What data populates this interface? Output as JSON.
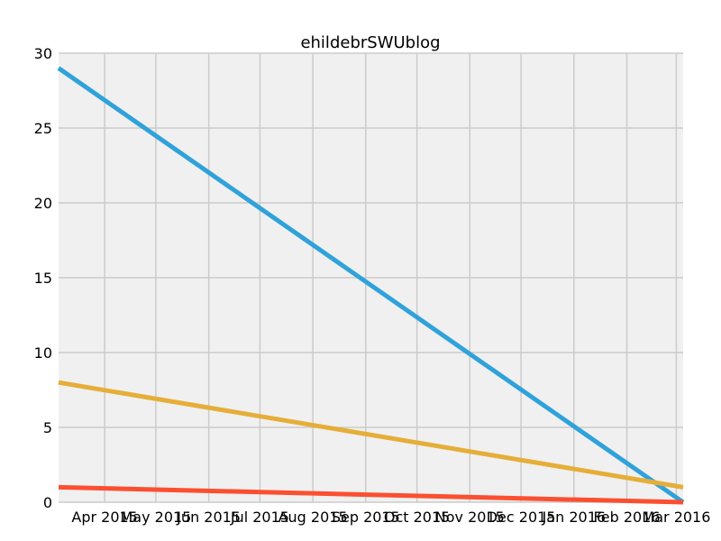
{
  "chart_data": {
    "type": "line",
    "title": "ehildebrSWUblog",
    "xlabel": "",
    "ylabel": "",
    "x_axis": {
      "type": "date",
      "range": [
        "2015-03-05",
        "2016-03-05"
      ],
      "ticks": [
        {
          "date": "2015-04-01",
          "label": "Apr 2015"
        },
        {
          "date": "2015-05-01",
          "label": "May 2015"
        },
        {
          "date": "2015-06-01",
          "label": "Jun 2015"
        },
        {
          "date": "2015-07-01",
          "label": "Jul 2015"
        },
        {
          "date": "2015-08-01",
          "label": "Aug 2015"
        },
        {
          "date": "2015-09-01",
          "label": "Sep 2015"
        },
        {
          "date": "2015-10-01",
          "label": "Oct 2015"
        },
        {
          "date": "2015-11-01",
          "label": "Nov 2015"
        },
        {
          "date": "2015-12-01",
          "label": "Dec 2015"
        },
        {
          "date": "2016-01-01",
          "label": "Jan 2016"
        },
        {
          "date": "2016-02-01",
          "label": "Feb 2016"
        },
        {
          "date": "2016-03-01",
          "label": "Mar 2016"
        }
      ]
    },
    "y_axis": {
      "range": [
        0,
        30
      ],
      "ticks": [
        0,
        5,
        10,
        15,
        20,
        25,
        30
      ]
    },
    "grid": true,
    "background": "#f0f0f0",
    "gridColor": "#cbcbcb",
    "series": [
      {
        "color": "#30a2da",
        "points": [
          [
            "2015-03-05",
            29
          ],
          [
            "2016-03-05",
            0
          ]
        ]
      },
      {
        "color": "#e5ae38",
        "points": [
          [
            "2015-03-05",
            8
          ],
          [
            "2016-03-05",
            1
          ]
        ]
      },
      {
        "color": "#fc4f30",
        "points": [
          [
            "2015-03-05",
            1
          ],
          [
            "2016-03-05",
            0
          ]
        ]
      }
    ]
  }
}
